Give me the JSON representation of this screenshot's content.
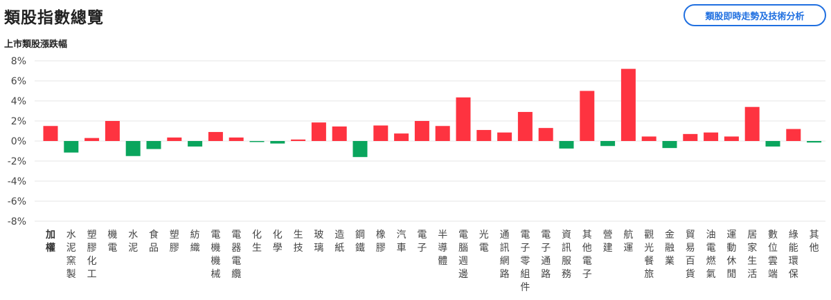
{
  "header": {
    "title": "類股指數總覽",
    "analysis_button_label": "類股即時走勢及技術分析"
  },
  "colors": {
    "up": "#fe3340",
    "down": "#0aa55d",
    "accent": "#1f6fe0",
    "grid": "#e6e6e6"
  },
  "chart_data": {
    "type": "bar",
    "title": "上市類股漲跌幅",
    "ylim": [
      -8,
      8
    ],
    "yticks": [
      "8%",
      "6%",
      "4%",
      "2%",
      "0%",
      "-2%",
      "-4%",
      "-6%",
      "-8%"
    ],
    "grid": true,
    "categories": [
      "加權",
      "水泥窯製",
      "塑膠化工",
      "機電",
      "水泥",
      "食品",
      "塑膠",
      "紡織",
      "電機機械",
      "電器電纜",
      "化生",
      "化學",
      "生技",
      "玻璃",
      "造紙",
      "鋼鐵",
      "橡膠",
      "汽車",
      "電子",
      "半導體",
      "電腦週邊",
      "光電",
      "通訊網路",
      "電子零組件",
      "電子通路",
      "資訊服務",
      "其他電子",
      "營建",
      "航運",
      "觀光餐旅",
      "金融業",
      "貿易百貨",
      "油電燃氣",
      "運動休閒",
      "居家生活",
      "數位雲端",
      "綠能環保",
      "其他"
    ],
    "values": [
      1.5,
      -1.15,
      0.3,
      2.0,
      -1.5,
      -0.8,
      0.35,
      -0.55,
      0.9,
      0.35,
      -0.1,
      -0.25,
      0.15,
      1.85,
      1.45,
      -1.6,
      1.55,
      0.75,
      2.0,
      1.5,
      4.35,
      1.1,
      0.85,
      2.9,
      1.3,
      -0.75,
      5.0,
      -0.5,
      7.2,
      0.45,
      -0.7,
      0.7,
      0.85,
      0.45,
      3.4,
      -0.55,
      1.2,
      -0.15
    ]
  }
}
